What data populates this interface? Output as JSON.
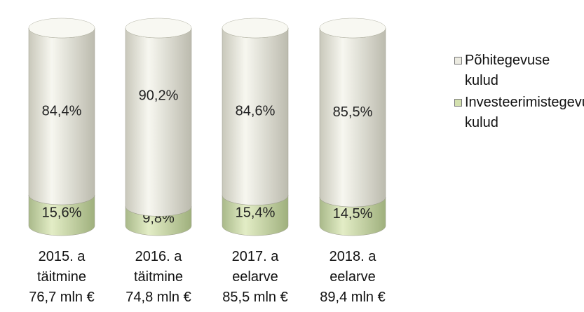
{
  "chart_data": {
    "type": "bar",
    "stacked": true,
    "categories": [
      "2015. a\ntäitmine\n76,7 mln €",
      "2016. a\ntäitmine\n74,8 mln €",
      "2017. a\neelarve\n85,5 mln €",
      "2018. a\neelarve\n89,4 mln €"
    ],
    "series": [
      {
        "name": "Investeerimistegevuse kulud",
        "color": "#d3e0ae",
        "values": [
          15.6,
          9.8,
          15.4,
          14.5
        ],
        "value_labels": [
          "15,6%",
          "9,8%",
          "15,4%",
          "14,5%"
        ]
      },
      {
        "name": "Põhitegevuse kulud",
        "color": "#ecebe1",
        "values": [
          84.4,
          90.2,
          84.6,
          85.5
        ],
        "value_labels": [
          "84,4%",
          "90,2%",
          "84,6%",
          "85,5%"
        ]
      }
    ],
    "legend": "right"
  }
}
